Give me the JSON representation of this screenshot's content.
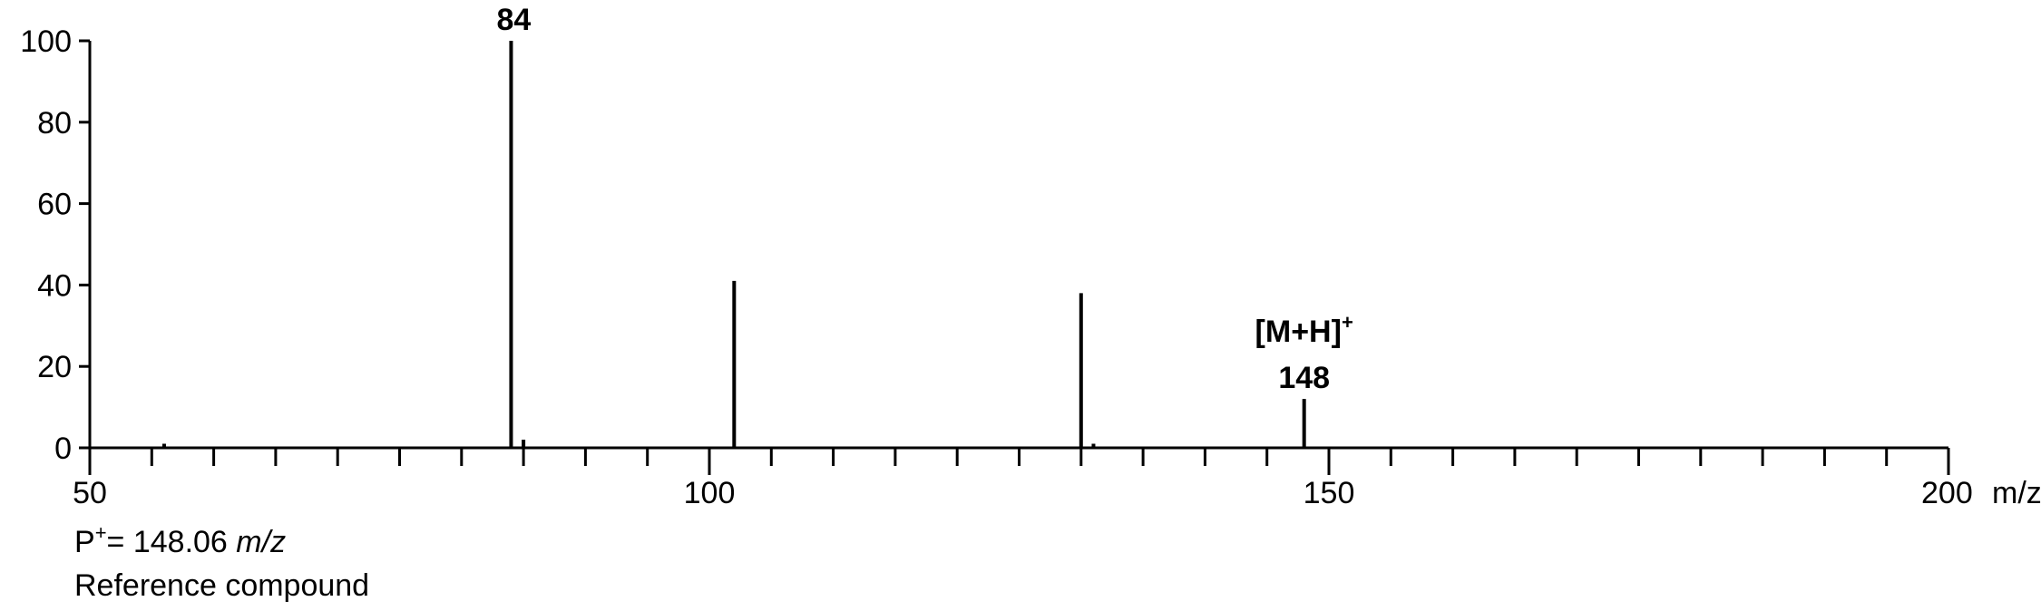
{
  "chart_data": {
    "type": "bar",
    "x_axis": {
      "range": [
        50,
        200
      ],
      "major_ticks": [
        50,
        100,
        150,
        200
      ],
      "tick_labels": [
        "50",
        "100",
        "150",
        "200"
      ],
      "minor_tick_step": 5,
      "unit_label": "m/z"
    },
    "y_axis": {
      "range": [
        0,
        100
      ],
      "ticks": [
        0,
        20,
        40,
        60,
        80,
        100
      ],
      "tick_labels": [
        "0",
        "20",
        "40",
        "60",
        "80",
        "100"
      ]
    },
    "grid": false,
    "peaks": [
      {
        "mz": 56,
        "intensity": 1
      },
      {
        "mz": 84,
        "intensity": 100
      },
      {
        "mz": 85,
        "intensity": 2
      },
      {
        "mz": 102,
        "intensity": 41
      },
      {
        "mz": 130,
        "intensity": 38
      },
      {
        "mz": 131,
        "intensity": 1
      },
      {
        "mz": 148,
        "intensity": 12
      }
    ],
    "annotations": [
      {
        "mz": 84,
        "intensity": 100,
        "text": "84"
      },
      {
        "mz": 148,
        "intensity": 12,
        "line1": "[M+H]",
        "line1_sup": "+",
        "line2": "148"
      }
    ]
  },
  "caption": {
    "p_prefix": "P",
    "p_sup": "+",
    "p_equals": "=  148.06 ",
    "p_unit": "m/z",
    "compound": "Reference compound"
  }
}
